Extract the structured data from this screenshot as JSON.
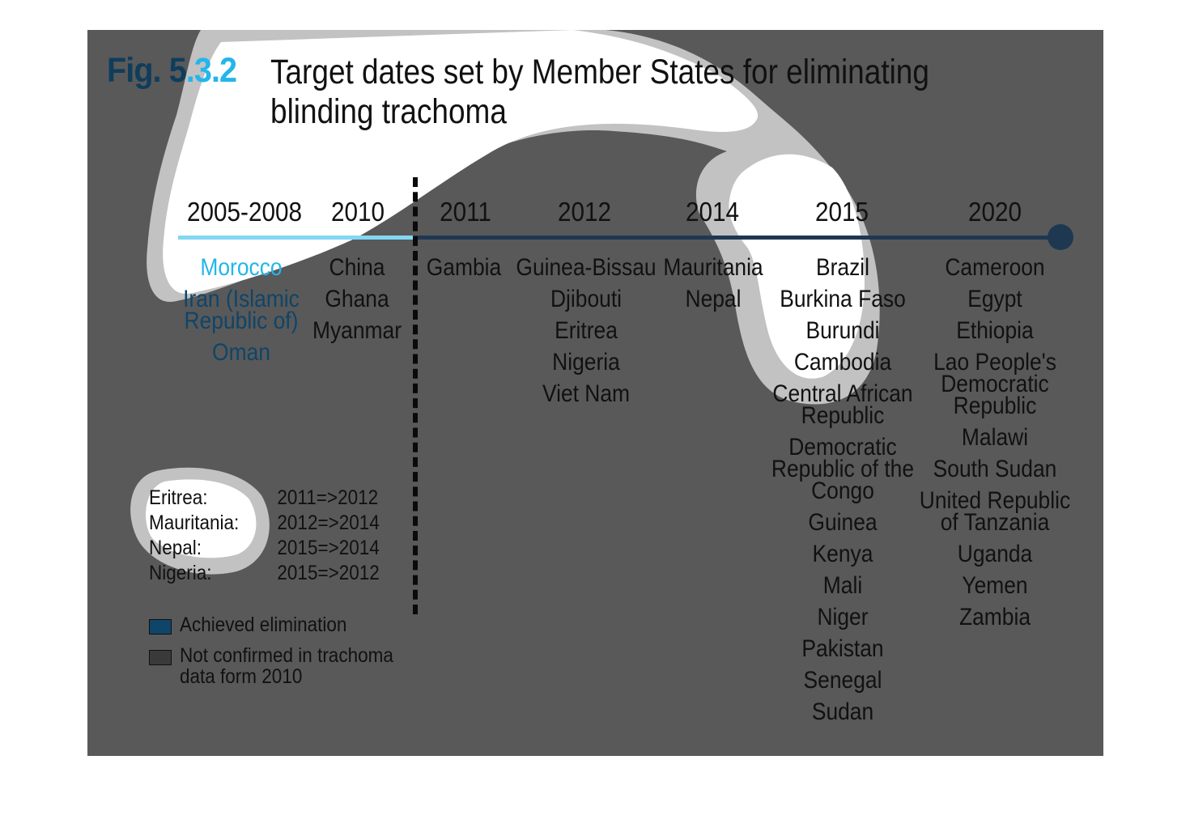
{
  "figure": {
    "number_part1": "Fig. 5",
    "number_part2": ".3.2",
    "title": "Target dates set by Member States for eliminating blinding trachoma"
  },
  "colors": {
    "panel": "#595959",
    "achieved": "#0f4568",
    "highlight": "#22b6ea",
    "not_confirmed": "#3a3a3a",
    "axis_before": "#82d7f2",
    "axis_after": "#1f3852"
  },
  "timeline": {
    "years": [
      "2005-2008",
      "2010",
      "2011",
      "2012",
      "2014",
      "2015",
      "2020"
    ],
    "columns": [
      [
        "Morocco",
        "Iran (Islamic Republic of)",
        "Oman"
      ],
      [
        "China",
        "Ghana",
        "Myanmar"
      ],
      [
        "Gambia"
      ],
      [
        "Guinea-Bissau",
        "Djibouti",
        "Eritrea",
        "Nigeria",
        "Viet Nam"
      ],
      [
        "Mauritania",
        "Nepal"
      ],
      [
        "Brazil",
        "Burkina Faso",
        "Burundi",
        "Cambodia",
        "Central African Republic",
        "Democratic Republic of the Congo",
        "Guinea",
        "Kenya",
        "Mali",
        "Niger",
        "Pakistan",
        "Senegal",
        "Sudan"
      ],
      [
        "Cameroon",
        "Egypt",
        "Ethiopia",
        "Lao People's Democratic Republic",
        "Malawi",
        "South Sudan",
        "United Republic of Tanzania",
        "Uganda",
        "Yemen",
        "Zambia"
      ]
    ]
  },
  "date_changes": [
    {
      "country": "Eritrea:",
      "change": "2011=>2012"
    },
    {
      "country": "Mauritania:",
      "change": "2012=>2014"
    },
    {
      "country": "Nepal:",
      "change": "2015=>2014"
    },
    {
      "country": "Nigeria:",
      "change": "2015=>2012"
    }
  ],
  "legend": [
    {
      "label": "Achieved elimination",
      "color": "#0f4568"
    },
    {
      "label": "Not confirmed in trachoma data form 2010",
      "color": "#3a3a3a"
    }
  ]
}
